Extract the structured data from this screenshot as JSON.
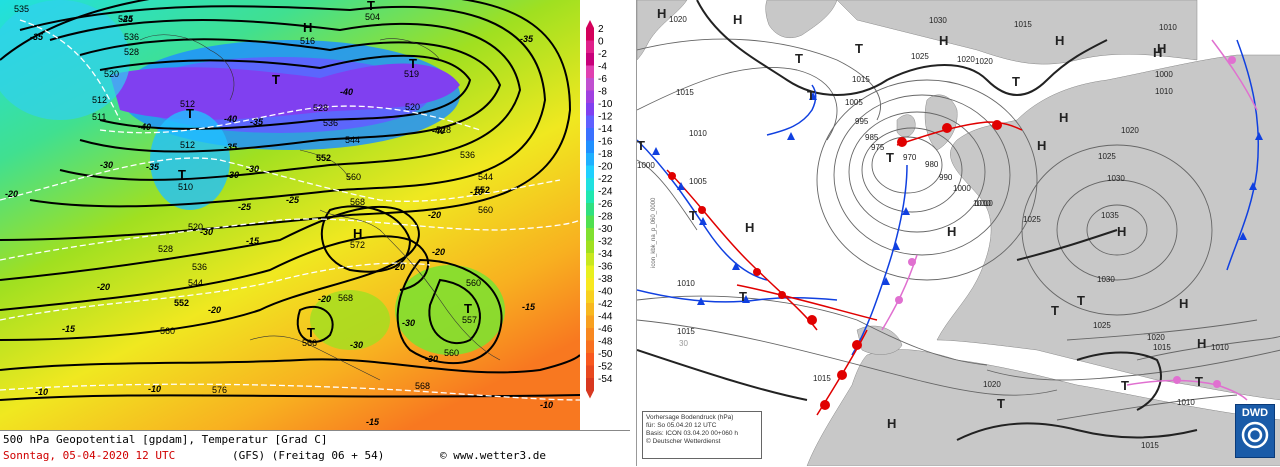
{
  "left_map": {
    "caption_line1": "500 hPa Geopotential [gpdam], Temperatur [Grad C]",
    "caption_date": "Sonntag, 05-04-2020  12 UTC",
    "caption_model": "(GFS)  (Freitag 06 + 54)",
    "caption_site": "www.wetter3.de",
    "legend": [
      "2",
      "0",
      "-2",
      "-4",
      "-6",
      "-8",
      "-10",
      "-12",
      "-14",
      "-16",
      "-18",
      "-20",
      "-22",
      "-24",
      "-26",
      "-28",
      "-30",
      "-32",
      "-34",
      "-36",
      "-38",
      "-40",
      "-42",
      "-44",
      "-46",
      "-48",
      "-50",
      "-52",
      "-54"
    ],
    "legend_colors": [
      "#d4005a",
      "#e0208a",
      "#c8007a",
      "#e040b0",
      "#c050d0",
      "#a040e0",
      "#8040f0",
      "#6060ff",
      "#3a70ff",
      "#2090ff",
      "#20b0ff",
      "#20d0ff",
      "#20e0e0",
      "#20e8b0",
      "#30e080",
      "#50e050",
      "#80e030",
      "#a0e020",
      "#c8e820",
      "#e8f020",
      "#f8e820",
      "#f8d020",
      "#f8b820",
      "#f8a020",
      "#f88820",
      "#f87020",
      "#f85820",
      "#e84820",
      "#d83820"
    ],
    "height_labels": [
      {
        "text": "535"
      },
      {
        "text": "544"
      },
      {
        "text": "536"
      },
      {
        "text": "528"
      },
      {
        "text": "520"
      },
      {
        "text": "512"
      },
      {
        "text": "511"
      },
      {
        "text": "512"
      },
      {
        "text": "510"
      },
      {
        "text": "504"
      },
      {
        "text": "516"
      },
      {
        "text": "519"
      },
      {
        "text": "520"
      },
      {
        "text": "528"
      },
      {
        "text": "536"
      },
      {
        "text": "544"
      },
      {
        "text": "552"
      },
      {
        "text": "560"
      },
      {
        "text": "568"
      },
      {
        "text": "572"
      },
      {
        "text": "568"
      },
      {
        "text": "566"
      },
      {
        "text": "560"
      },
      {
        "text": "557"
      },
      {
        "text": "560"
      },
      {
        "text": "568"
      },
      {
        "text": "576"
      },
      {
        "text": "552"
      },
      {
        "text": "560"
      },
      {
        "text": "544"
      },
      {
        "text": "536"
      },
      {
        "text": "528"
      },
      {
        "text": "520"
      },
      {
        "text": "512"
      },
      {
        "text": "528"
      },
      {
        "text": "536"
      },
      {
        "text": "544"
      },
      {
        "text": "552"
      },
      {
        "text": "560"
      }
    ],
    "temp_labels": [
      {
        "text": "-35"
      },
      {
        "text": "-35"
      },
      {
        "text": "-25"
      },
      {
        "text": "-30"
      },
      {
        "text": "-40"
      },
      {
        "text": "-40"
      },
      {
        "text": "-40"
      },
      {
        "text": "-40"
      },
      {
        "text": "-35"
      },
      {
        "text": "-35"
      },
      {
        "text": "-35"
      },
      {
        "text": "-30"
      },
      {
        "text": "-30"
      },
      {
        "text": "-25"
      },
      {
        "text": "-25"
      },
      {
        "text": "-20"
      },
      {
        "text": "-20"
      },
      {
        "text": "-20"
      },
      {
        "text": "-20"
      },
      {
        "text": "-20"
      },
      {
        "text": "-15"
      },
      {
        "text": "-15"
      },
      {
        "text": "-10"
      },
      {
        "text": "-10"
      },
      {
        "text": "-10"
      },
      {
        "text": "-15"
      },
      {
        "text": "-30"
      },
      {
        "text": "-30"
      },
      {
        "text": "-20"
      },
      {
        "text": "-30"
      },
      {
        "text": "-30"
      },
      {
        "text": "-20"
      },
      {
        "text": "-15"
      },
      {
        "text": "-10"
      }
    ],
    "pressure_centers": [
      {
        "text": "H"
      },
      {
        "text": "T"
      },
      {
        "text": "T"
      },
      {
        "text": "T"
      },
      {
        "text": "T"
      },
      {
        "text": "T"
      },
      {
        "text": "H"
      },
      {
        "text": "T"
      },
      {
        "text": "T"
      }
    ]
  },
  "right_map": {
    "info_line1": "Vorhersage Bodendruck (hPa)",
    "info_line2": "für:  So 05.04.20  12 UTC",
    "info_line3": "Basis: ICON  03.04.20 00+060 h",
    "info_line4": "© Deutscher Wetterdienst",
    "dwd_logo": "DWD",
    "vertical_text": "icon_kbk_na_p_060_0000",
    "centers": [
      {
        "text": "H"
      },
      {
        "text": "H"
      },
      {
        "text": "T"
      },
      {
        "text": "T"
      },
      {
        "text": "H"
      },
      {
        "text": "T"
      },
      {
        "text": "H"
      },
      {
        "text": "H"
      },
      {
        "text": "T"
      },
      {
        "text": "T"
      },
      {
        "text": "H"
      },
      {
        "text": "H"
      },
      {
        "text": "H"
      },
      {
        "text": "T"
      },
      {
        "text": "H"
      },
      {
        "text": "H"
      },
      {
        "text": "T"
      },
      {
        "text": "T"
      },
      {
        "text": "T"
      },
      {
        "text": "T"
      },
      {
        "text": "H"
      },
      {
        "text": "T"
      },
      {
        "text": "T"
      },
      {
        "text": "H"
      },
      {
        "text": "H"
      },
      {
        "text": "T"
      },
      {
        "text": "H"
      }
    ],
    "isobar_labels": [
      {
        "text": "1020"
      },
      {
        "text": "1015"
      },
      {
        "text": "1030"
      },
      {
        "text": "1025"
      },
      {
        "text": "1020"
      },
      {
        "text": "1015"
      },
      {
        "text": "1015"
      },
      {
        "text": "1005"
      },
      {
        "text": "1010"
      },
      {
        "text": "1000"
      },
      {
        "text": "1005"
      },
      {
        "text": "995"
      },
      {
        "text": "985"
      },
      {
        "text": "975"
      },
      {
        "text": "970"
      },
      {
        "text": "980"
      },
      {
        "text": "990"
      },
      {
        "text": "1000"
      },
      {
        "text": "1010"
      },
      {
        "text": "1025"
      },
      {
        "text": "1020"
      },
      {
        "text": "1025"
      },
      {
        "text": "1030"
      },
      {
        "text": "1035"
      },
      {
        "text": "1030"
      },
      {
        "text": "1010"
      },
      {
        "text": "1010"
      },
      {
        "text": "1015"
      },
      {
        "text": "1015"
      },
      {
        "text": "1020"
      },
      {
        "text": "1025"
      },
      {
        "text": "1020"
      },
      {
        "text": "1015"
      },
      {
        "text": "1010"
      },
      {
        "text": "1010"
      },
      {
        "text": "1015"
      },
      {
        "text": "1000"
      },
      {
        "text": "1010"
      },
      {
        "text": "1020"
      },
      {
        "text": "1010"
      },
      {
        "text": "30"
      }
    ]
  }
}
